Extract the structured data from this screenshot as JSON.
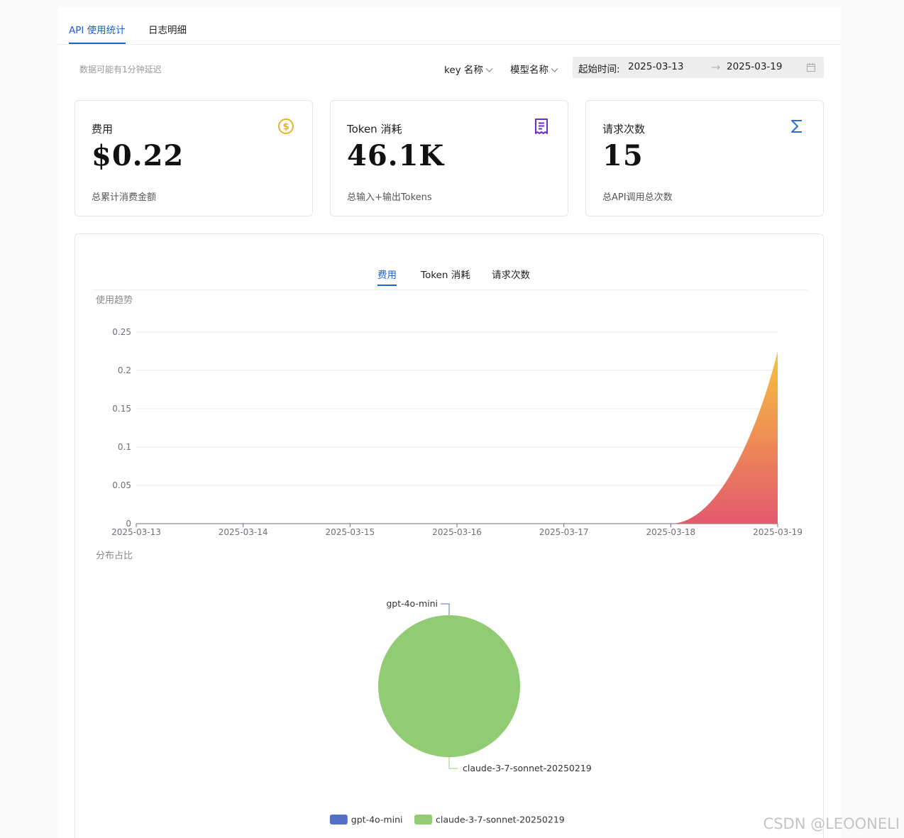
{
  "tabs": [
    {
      "label": "API 使用统计",
      "active": true
    },
    {
      "label": "日志明细",
      "active": false
    }
  ],
  "toolbar": {
    "delay_note": "数据可能有1分钟延迟",
    "key_filter": "key 名称",
    "model_filter": "模型名称",
    "date_label": "起始时间:",
    "start_date": "2025-03-13",
    "end_date": "2025-03-19"
  },
  "cards": [
    {
      "title": "费用",
      "value": "$0.22",
      "subtitle": "总累计消费金额",
      "icon": "dollar-circle-icon",
      "icon_color": "#e6b422"
    },
    {
      "title": "Token 消耗",
      "value": "46.1K",
      "subtitle": "总输入+输出Tokens",
      "icon": "receipt-icon",
      "icon_color": "#6a2bd9"
    },
    {
      "title": "请求次数",
      "value": "15",
      "subtitle": "总API调用总次数",
      "icon": "sigma-icon",
      "icon_color": "#2b6fd9"
    }
  ],
  "chart_tabs": [
    {
      "label": "费用",
      "active": true
    },
    {
      "label": "Token 消耗",
      "active": false
    },
    {
      "label": "请求次数",
      "active": false
    }
  ],
  "trend": {
    "section_title": "使用趋势"
  },
  "distribution": {
    "section_title": "分布占比"
  },
  "chart_data": [
    {
      "type": "area",
      "x": [
        "2025-03-13",
        "2025-03-14",
        "2025-03-15",
        "2025-03-16",
        "2025-03-17",
        "2025-03-18",
        "2025-03-19"
      ],
      "series": [
        {
          "values": [
            0,
            0,
            0,
            0,
            0,
            0,
            0.225
          ]
        }
      ],
      "ylim": [
        0,
        0.25
      ],
      "yticks": [
        "0",
        "0.05",
        "0.1",
        "0.15",
        "0.2",
        "0.25"
      ],
      "grid": true,
      "colors": {
        "top": "#f7c23c",
        "bottom": "#e4596e"
      }
    },
    {
      "type": "pie",
      "slices": [
        {
          "label": "gpt-4o-mini",
          "value": 0,
          "color": "#5470c6"
        },
        {
          "label": "claude-3-7-sonnet-20250219",
          "value": 100,
          "color": "#91cc75"
        }
      ],
      "legend": "bottom-center"
    }
  ],
  "watermark": "CSDN @LEOONELI"
}
